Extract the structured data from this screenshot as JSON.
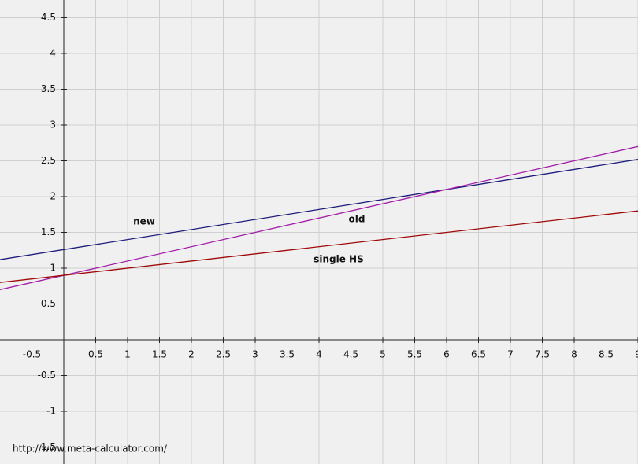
{
  "chart_data": {
    "type": "line",
    "x": [
      -1,
      9
    ],
    "series": [
      {
        "name": "new",
        "color": "#1c1c7a",
        "values": [
          1.12,
          2.52
        ]
      },
      {
        "name": "old",
        "color": "#a21ca8",
        "values": [
          0.7,
          2.7
        ]
      },
      {
        "name": "single HS",
        "color": "#a00808",
        "values": [
          0.8,
          1.8
        ]
      }
    ],
    "xlim": [
      -1,
      9
    ],
    "ylim": [
      -1.736,
      4.747
    ],
    "xticks": [
      -0.5,
      0.5,
      1,
      1.5,
      2,
      2.5,
      3,
      3.5,
      4,
      4.5,
      5,
      5.5,
      6,
      6.5,
      7,
      7.5,
      8,
      8.5,
      9
    ],
    "yticks": [
      -1.5,
      -1,
      -0.5,
      0.5,
      1,
      1.5,
      2,
      2.5,
      3,
      3.5,
      4,
      4.5
    ],
    "grid": true,
    "watermark": "http://www.meta-calculator.com/"
  }
}
